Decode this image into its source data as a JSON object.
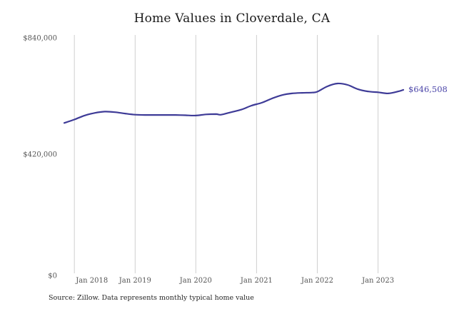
{
  "chart_data": {
    "type": "line",
    "title": "Home Values in Cloverdale, CA",
    "source": "Source: Zillow. Data represents monthly typical home value",
    "end_label": "$646,508",
    "x_ticks": [
      "Jan 2018",
      "Jan 2019",
      "Jan 2020",
      "Jan 2021",
      "Jan 2022",
      "Jan 2023"
    ],
    "y_ticks": [
      {
        "label": "$0",
        "value": 0
      },
      {
        "label": "$420,000",
        "value": 420000
      },
      {
        "label": "$840,000",
        "value": 840000
      }
    ],
    "ylim": [
      0,
      840000
    ],
    "grid": "vertical-only",
    "legend": "none",
    "colors": {
      "line": "#3e3b97",
      "end_label": "#4a44a8",
      "grid": "#cfcfcf",
      "tick_text": "#555555",
      "title_text": "#1a1a1a",
      "source_text": "#262626"
    },
    "series": [
      {
        "name": "Monthly typical home value",
        "points": [
          [
            "Nov 2017",
            530000
          ],
          [
            "Jan 2018",
            542000
          ],
          [
            "Mar 2018",
            556000
          ],
          [
            "May 2018",
            565000
          ],
          [
            "Jul 2018",
            570000
          ],
          [
            "Sep 2018",
            568000
          ],
          [
            "Nov 2018",
            563000
          ],
          [
            "Jan 2019",
            559000
          ],
          [
            "Mar 2019",
            558000
          ],
          [
            "May 2019",
            558000
          ],
          [
            "Jul 2019",
            558000
          ],
          [
            "Sep 2019",
            558000
          ],
          [
            "Nov 2019",
            557000
          ],
          [
            "Jan 2020",
            556000
          ],
          [
            "Mar 2020",
            560000
          ],
          [
            "May 2020",
            561000
          ],
          [
            "Jun 2020",
            559000
          ],
          [
            "Aug 2020",
            568000
          ],
          [
            "Oct 2020",
            577000
          ],
          [
            "Dec 2020",
            591000
          ],
          [
            "Feb 2021",
            601000
          ],
          [
            "Apr 2021",
            616000
          ],
          [
            "Jun 2021",
            628000
          ],
          [
            "Aug 2021",
            634000
          ],
          [
            "Oct 2021",
            636000
          ],
          [
            "Dec 2021",
            637000
          ],
          [
            "Jan 2022",
            640000
          ],
          [
            "Mar 2022",
            659000
          ],
          [
            "May 2022",
            669000
          ],
          [
            "Jul 2022",
            664000
          ],
          [
            "Sep 2022",
            649000
          ],
          [
            "Nov 2022",
            641000
          ],
          [
            "Jan 2023",
            638000
          ],
          [
            "Mar 2023",
            634000
          ],
          [
            "May 2023",
            641000
          ],
          [
            "Jun 2023",
            646508
          ]
        ]
      }
    ]
  }
}
